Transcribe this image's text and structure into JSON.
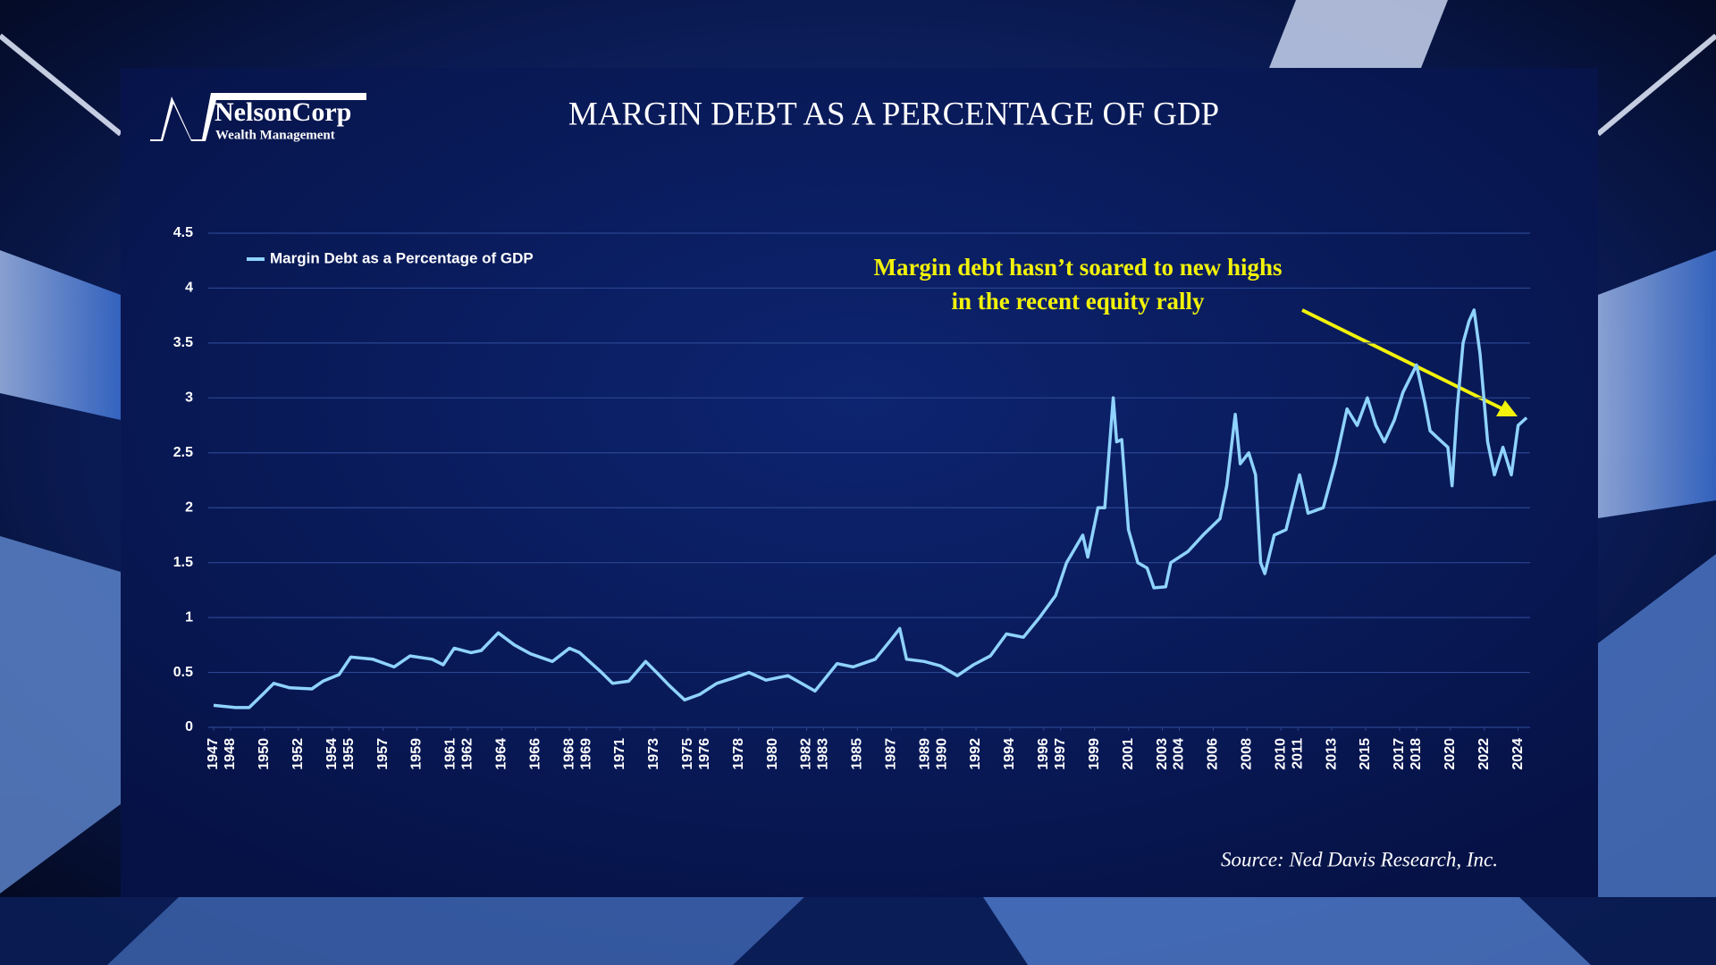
{
  "logo": {
    "name": "NelsonCorp",
    "tagline": "Wealth Management"
  },
  "chart_data": {
    "type": "line",
    "title": "MARGIN DEBT AS A PERCENTAGE OF GDP",
    "annotation": [
      "Margin debt hasn’t soared to new highs",
      "in the recent equity rally"
    ],
    "source": "Source: Ned Davis Research, Inc.",
    "x": [
      1947.0,
      1948.3,
      1949.1,
      1949.9,
      1950.55,
      1951.5,
      1952.8,
      1953.45,
      1954.4,
      1955.1,
      1956.4,
      1957.65,
      1958.6,
      1959.9,
      1960.55,
      1961.2,
      1962.2,
      1962.8,
      1963.8,
      1964.75,
      1965.7,
      1967.0,
      1968.0,
      1968.6,
      1969.9,
      1970.55,
      1971.5,
      1972.5,
      1973.15,
      1973.9,
      1974.8,
      1975.7,
      1976.7,
      1977.7,
      1978.6,
      1979.6,
      1980.9,
      1982.5,
      1983.8,
      1984.75,
      1986.05,
      1987.0,
      1987.5,
      1987.9,
      1988.95,
      1989.9,
      1990.9,
      1991.85,
      1992.85,
      1993.8,
      1994.8,
      1995.75,
      1996.7,
      1997.35,
      1998.3,
      1998.6,
      1999.2,
      1999.6,
      2000.1,
      2000.3,
      2000.6,
      2001.0,
      2001.55,
      2002.1,
      2002.5,
      2003.2,
      2003.5,
      2004.5,
      2005.4,
      2006.4,
      2006.8,
      2007.3,
      2007.6,
      2008.1,
      2008.5,
      2008.8,
      2009.05,
      2009.6,
      2010.3,
      2011.1,
      2011.6,
      2012.5,
      2013.2,
      2013.9,
      2014.5,
      2015.1,
      2015.6,
      2016.1,
      2016.7,
      2017.2,
      2018.0,
      2018.5,
      2018.8,
      2019.5,
      2019.85,
      2020.1,
      2020.4,
      2020.75,
      2021.1,
      2021.4,
      2021.75,
      2022.2,
      2022.6,
      2023.1,
      2023.6,
      2024.0,
      2024.5
    ],
    "series": [
      {
        "name": "Margin Debt as a Percentage of GDP",
        "color": "#8fd3ff",
        "values": [
          0.2,
          0.18,
          0.18,
          0.3,
          0.4,
          0.36,
          0.35,
          0.42,
          0.48,
          0.64,
          0.62,
          0.55,
          0.65,
          0.62,
          0.57,
          0.72,
          0.68,
          0.7,
          0.86,
          0.75,
          0.67,
          0.6,
          0.72,
          0.68,
          0.5,
          0.4,
          0.42,
          0.6,
          0.5,
          0.38,
          0.25,
          0.3,
          0.4,
          0.45,
          0.5,
          0.43,
          0.47,
          0.33,
          0.58,
          0.55,
          0.62,
          0.8,
          0.9,
          0.62,
          0.6,
          0.56,
          0.47,
          0.57,
          0.65,
          0.85,
          0.82,
          1.0,
          1.2,
          1.5,
          1.75,
          1.55,
          2.0,
          2.0,
          3.0,
          2.6,
          2.62,
          1.8,
          1.5,
          1.45,
          1.27,
          1.28,
          1.5,
          1.6,
          1.75,
          1.9,
          2.2,
          2.85,
          2.4,
          2.5,
          2.3,
          1.5,
          1.4,
          1.75,
          1.8,
          2.3,
          1.95,
          2.0,
          2.4,
          2.9,
          2.75,
          3.0,
          2.75,
          2.6,
          2.8,
          3.05,
          3.3,
          2.95,
          2.7,
          2.6,
          2.55,
          2.2,
          2.9,
          3.5,
          3.7,
          3.8,
          3.4,
          2.6,
          2.3,
          2.55,
          2.3,
          2.75,
          2.82
        ]
      }
    ],
    "xlim": [
      1947,
      2024.6
    ],
    "xticks": [
      1947,
      1948,
      1950,
      1952,
      1954,
      1955,
      1957,
      1959,
      1961,
      1962,
      1964,
      1966,
      1968,
      1969,
      1971,
      1973,
      1975,
      1976,
      1978,
      1980,
      1982,
      1983,
      1985,
      1987,
      1989,
      1990,
      1992,
      1994,
      1996,
      1997,
      1999,
      2001,
      2003,
      2004,
      2006,
      2008,
      2010,
      2011,
      2013,
      2015,
      2017,
      2018,
      2020,
      2022,
      2024
    ],
    "ylim": [
      0,
      4.5
    ],
    "yticks": [
      0,
      {
        "value": 0.5,
        "label": "0.5"
      },
      1,
      {
        "value": 1.5,
        "label": "1.5"
      },
      2,
      {
        "value": 2.5,
        "label": "2.5"
      },
      3,
      {
        "value": 3.5,
        "label": "3.5"
      },
      4,
      {
        "value": 4.5,
        "label": "4.5"
      }
    ],
    "grid": true,
    "legend": "top-left"
  }
}
